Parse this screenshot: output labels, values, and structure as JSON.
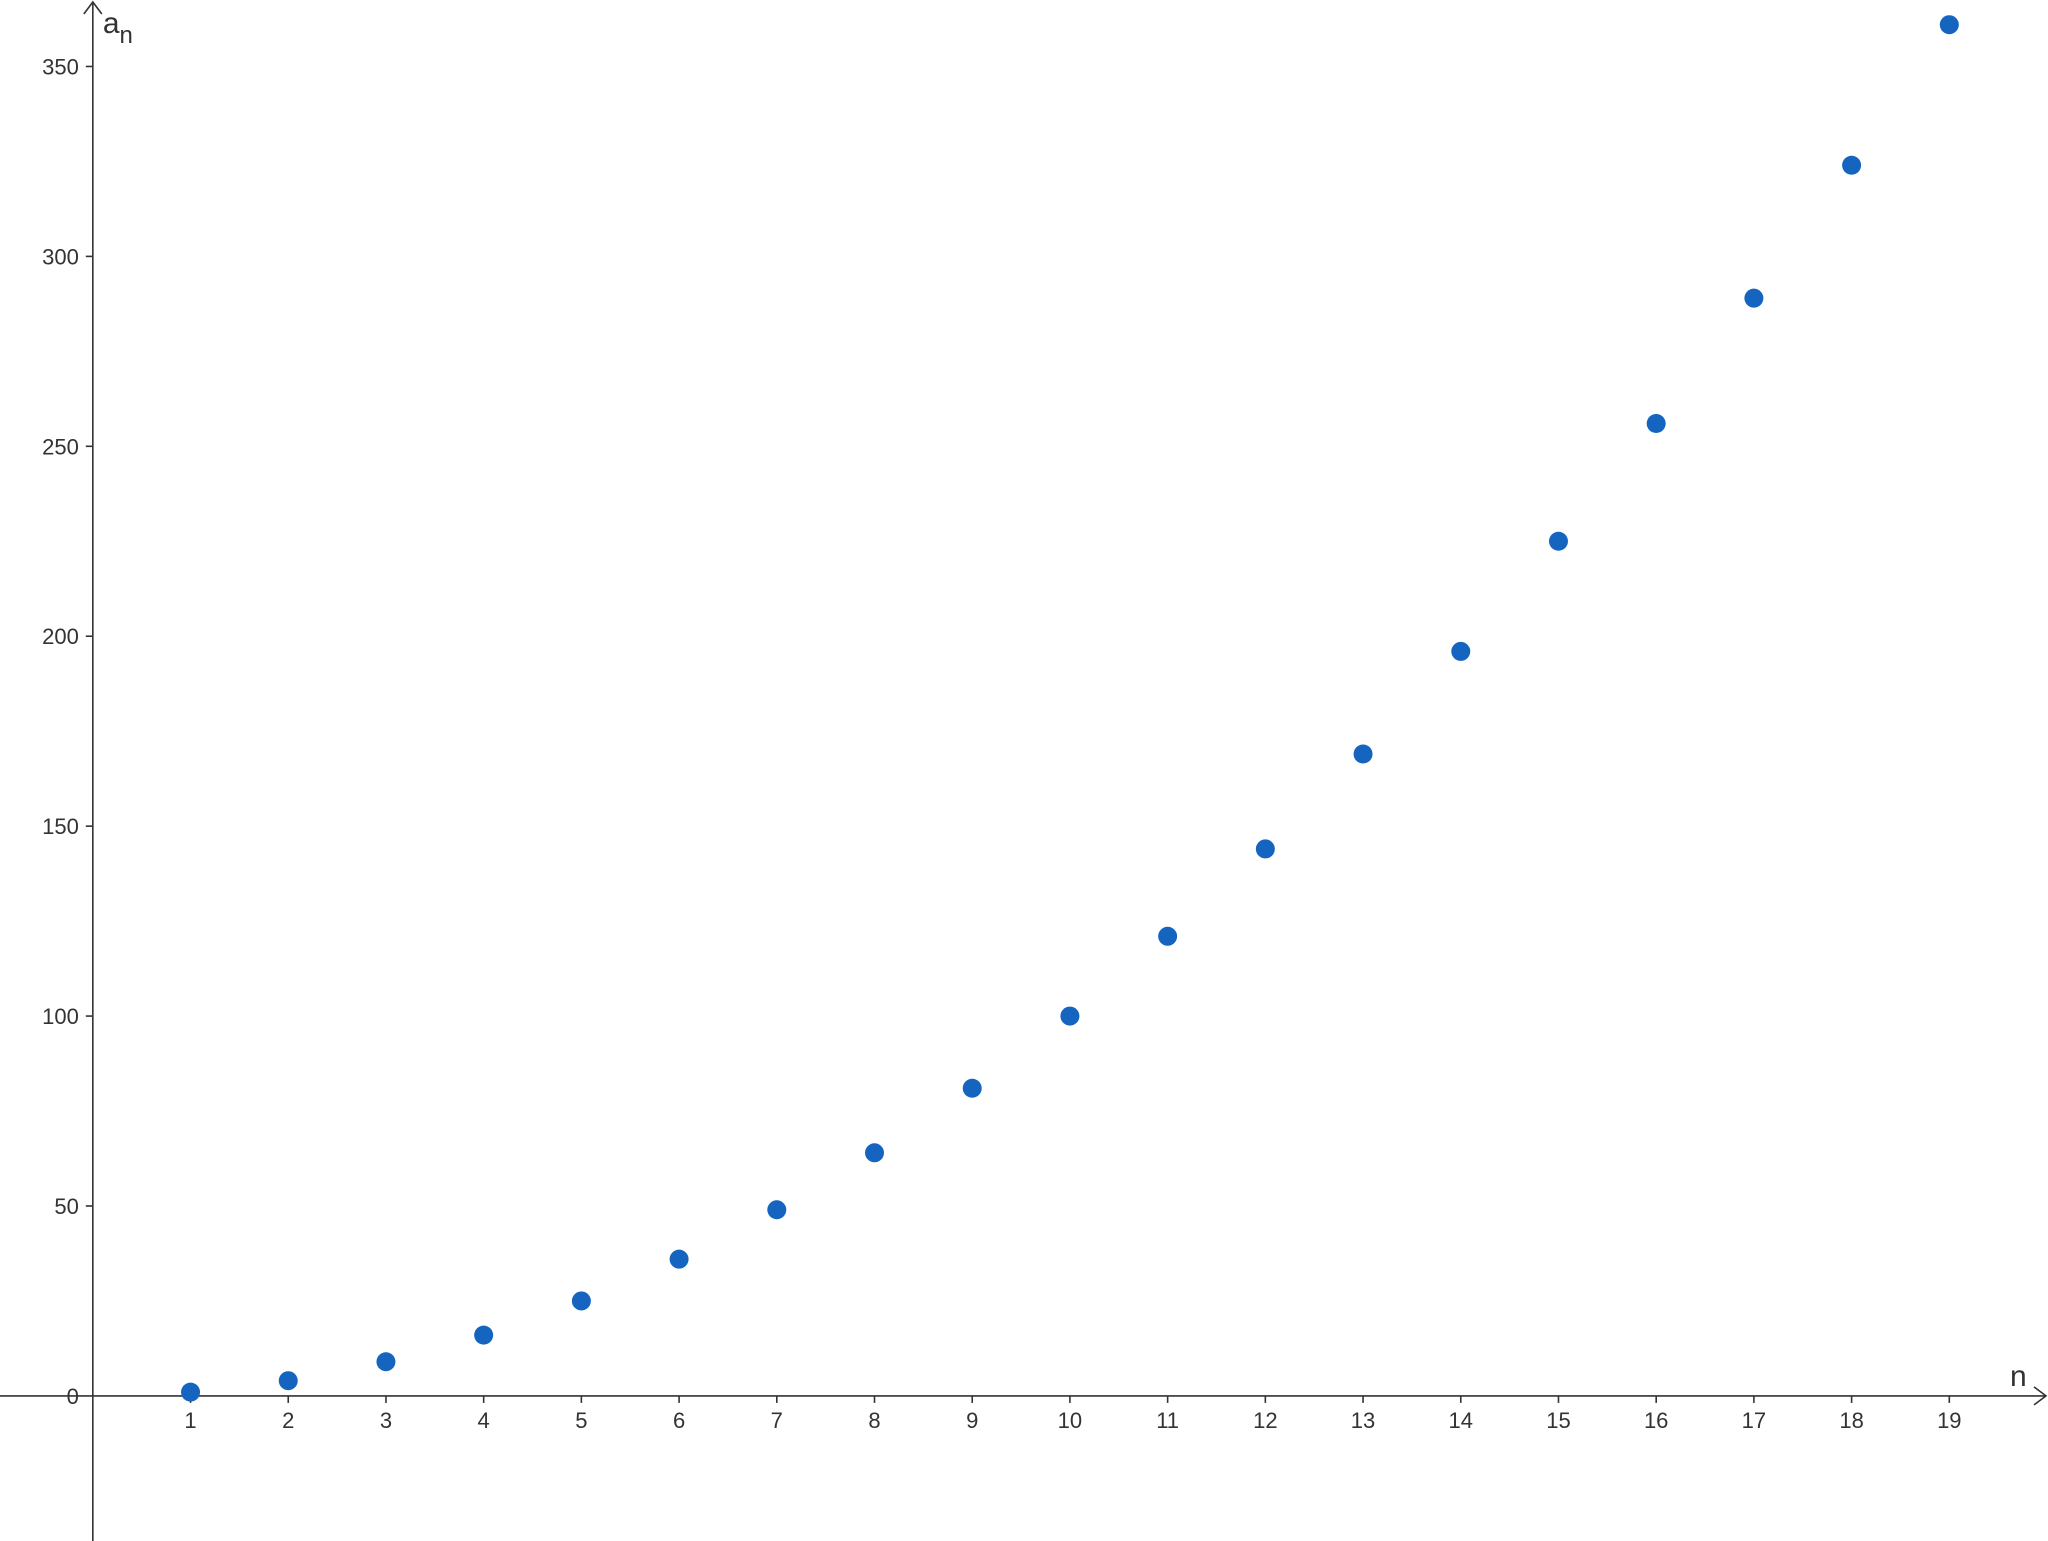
{
  "chart_data": {
    "type": "scatter",
    "title": "",
    "xlabel": "n",
    "ylabel_base": "a",
    "ylabel_sub": "n",
    "xlim": [
      -0.95,
      20.01
    ],
    "ylim": [
      -38.2,
      367.5
    ],
    "grid": false,
    "x_ticks": [
      1,
      2,
      3,
      4,
      5,
      6,
      7,
      8,
      9,
      10,
      11,
      12,
      13,
      14,
      15,
      16,
      17,
      18,
      19
    ],
    "y_ticks": [
      0,
      50,
      100,
      150,
      200,
      250,
      300,
      350
    ],
    "point_color": "#1565c0",
    "axis_color": "#333333",
    "series": [
      {
        "x": [
          1,
          2,
          3,
          4,
          5,
          6,
          7,
          8,
          9,
          10,
          11,
          12,
          13,
          14,
          15,
          16,
          17,
          18,
          19
        ],
        "y": [
          1,
          4,
          9,
          16,
          25,
          36,
          49,
          64,
          81,
          100,
          121,
          144,
          169,
          196,
          225,
          256,
          289,
          324,
          361
        ]
      }
    ]
  }
}
